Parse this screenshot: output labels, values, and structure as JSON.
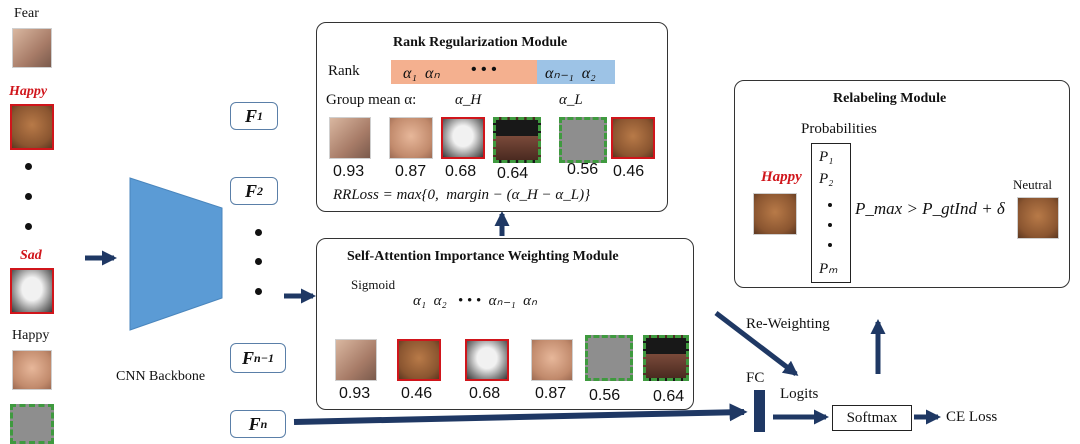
{
  "input_faces": {
    "fear_label": "Fear",
    "happy_label_1": "Happy",
    "sad_label": "Sad",
    "happy_label_2": "Happy"
  },
  "backbone": {
    "label": "CNN Backbone"
  },
  "features": {
    "f1": "F",
    "f1_sub": "1",
    "f2": "F",
    "f2_sub": "2",
    "fn1": "F",
    "fn1_sub": "n−1",
    "fn": "F",
    "fn_sub": "n"
  },
  "rank_module": {
    "title": "Rank Regularization Module",
    "rank_label": "Rank",
    "rank_high": "α₁  αₙ",
    "rank_dots": "• • •",
    "rank_low": "αₙ₋₁  α₂",
    "group_mean_label": "Group mean α:",
    "alpha_h": "α_H",
    "alpha_l": "α_L",
    "scores": [
      "0.93",
      "0.87",
      "0.68",
      "0.64",
      "0.56",
      "0.46"
    ],
    "loss": "RRLoss = max{0,  margin − (α_H − α_L)}"
  },
  "attention_module": {
    "title": "Self-Attention Importance Weighting Module",
    "sigmoid_label": "Sigmoid",
    "alphas": "α₁  α₂   • • •  αₙ₋₁  αₙ",
    "scores": [
      "0.93",
      "0.46",
      "0.68",
      "0.87",
      "0.56",
      "0.64"
    ]
  },
  "relabel_module": {
    "title": "Relabeling Module",
    "probabilities_label": "Probabilities",
    "p1": "P₁",
    "p2": "P₂",
    "pm": "Pₘ",
    "happy_label": "Happy",
    "condition": "P_max > P_gtInd + δ",
    "neutral_label": "Neutral"
  },
  "head": {
    "reweighting_label": "Re-Weighting",
    "fc_label": "FC",
    "logits_label": "Logits",
    "softmax_label": "Softmax",
    "ce_loss_label": "CE Loss"
  },
  "colors": {
    "arrow": "#1f3864",
    "rank_high_bg": "#f4b08f",
    "rank_low_bg": "#9dc3e6",
    "backbone": "#5b9bd5",
    "red": "#d0151b",
    "green_dash": "#3f9a3f"
  }
}
